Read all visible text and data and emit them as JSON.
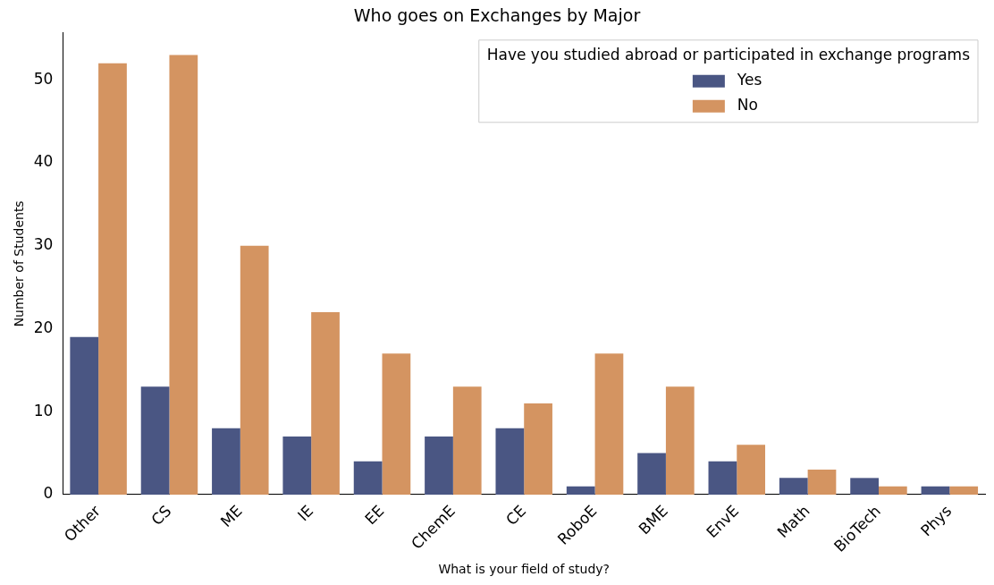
{
  "chart_data": {
    "type": "bar",
    "title": "Who goes on Exchanges by Major",
    "xlabel": "What is your field of study?",
    "ylabel": "Number of Students",
    "legend_title": "Have you studied abroad or participated in exchange programs",
    "legend": "top right",
    "categories": [
      "Other",
      "CS",
      "ME",
      "IE",
      "EE",
      "ChemE",
      "CE",
      "RoboE",
      "BME",
      "EnvE",
      "Math",
      "BioTech",
      "Phys"
    ],
    "series": [
      {
        "name": "Yes",
        "color": "#4a5683",
        "values": [
          19,
          13,
          8,
          7,
          4,
          7,
          8,
          1,
          5,
          4,
          2,
          2,
          1
        ]
      },
      {
        "name": "No",
        "color": "#d49461",
        "values": [
          52,
          53,
          30,
          22,
          17,
          13,
          11,
          17,
          13,
          6,
          3,
          1,
          1
        ]
      }
    ],
    "ylim": [
      0,
      55.65
    ],
    "yticks": [
      0,
      10,
      20,
      30,
      40,
      50
    ],
    "grid": false
  }
}
